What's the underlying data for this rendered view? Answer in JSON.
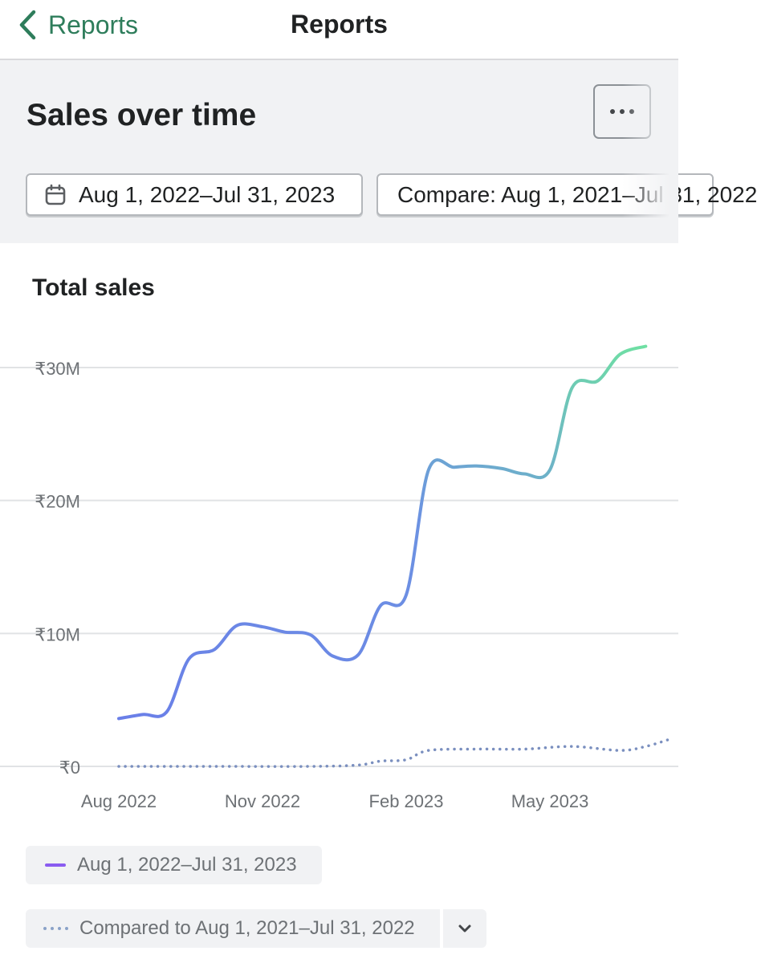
{
  "nav": {
    "back_label": "Reports",
    "title": "Reports",
    "back_icon": "chevron-left-icon"
  },
  "header": {
    "title": "Sales over time",
    "more_icon": "ellipsis-icon",
    "date_range": "Aug 1, 2022–Jul 31, 2023",
    "date_icon": "calendar-icon",
    "compare_range": "Compare: Aug 1, 2021–Jul 31, 2022"
  },
  "card": {
    "title": "Total sales"
  },
  "legend": {
    "primary": "Aug 1, 2022–Jul 31, 2023",
    "comparison": "Compared to Aug 1, 2021–Jul 31, 2022",
    "toggle_icon": "chevron-down-icon"
  },
  "colors": {
    "accent_green": "#2e7d5b",
    "line_start": "#6a7fe8",
    "line_end": "#6fe0a3",
    "comparison_line": "#7a8fbf",
    "legend_swatch": "#8a5cf0"
  },
  "chart_data": {
    "type": "line",
    "title": "Total sales",
    "x_ticks": [
      "Aug 2022",
      "Nov 2022",
      "Feb 2023",
      "May 2023"
    ],
    "y_ticks": [
      "₹0",
      "₹10M",
      "₹20M",
      "₹30M"
    ],
    "ylim": [
      0,
      30000000
    ],
    "grid": true,
    "legend_position": "bottom",
    "series": [
      {
        "name": "Aug 1, 2022–Jul 31, 2023",
        "style": "solid",
        "points": [
          {
            "x": "2022-08-01",
            "y": 3.6
          },
          {
            "x": "2022-08-16",
            "y": 3.9
          },
          {
            "x": "2022-09-01",
            "y": 4.1
          },
          {
            "x": "2022-09-15",
            "y": 8.1
          },
          {
            "x": "2022-10-01",
            "y": 8.8
          },
          {
            "x": "2022-10-15",
            "y": 10.6
          },
          {
            "x": "2022-11-01",
            "y": 10.5
          },
          {
            "x": "2022-11-15",
            "y": 10.1
          },
          {
            "x": "2022-12-01",
            "y": 9.9
          },
          {
            "x": "2022-12-15",
            "y": 8.3
          },
          {
            "x": "2023-01-01",
            "y": 8.4
          },
          {
            "x": "2023-01-15",
            "y": 12.1
          },
          {
            "x": "2023-02-01",
            "y": 12.9
          },
          {
            "x": "2023-02-15",
            "y": 22.3
          },
          {
            "x": "2023-03-01",
            "y": 22.5
          },
          {
            "x": "2023-03-15",
            "y": 22.6
          },
          {
            "x": "2023-04-01",
            "y": 22.4
          },
          {
            "x": "2023-04-15",
            "y": 22.0
          },
          {
            "x": "2023-05-01",
            "y": 22.3
          },
          {
            "x": "2023-05-15",
            "y": 28.5
          },
          {
            "x": "2023-06-01",
            "y": 29.0
          },
          {
            "x": "2023-06-15",
            "y": 31.0
          },
          {
            "x": "2023-07-01",
            "y": 31.6
          }
        ]
      },
      {
        "name": "Compared to Aug 1, 2021–Jul 31, 2022",
        "style": "dotted",
        "points": [
          {
            "x": "2022-08-01",
            "y": 0.0
          },
          {
            "x": "2022-10-01",
            "y": 0.0
          },
          {
            "x": "2022-12-01",
            "y": 0.0
          },
          {
            "x": "2023-01-01",
            "y": 0.1
          },
          {
            "x": "2023-01-15",
            "y": 0.4
          },
          {
            "x": "2023-02-01",
            "y": 0.5
          },
          {
            "x": "2023-02-15",
            "y": 1.2
          },
          {
            "x": "2023-03-15",
            "y": 1.3
          },
          {
            "x": "2023-04-15",
            "y": 1.3
          },
          {
            "x": "2023-05-15",
            "y": 1.5
          },
          {
            "x": "2023-06-15",
            "y": 1.2
          },
          {
            "x": "2023-07-01",
            "y": 1.5
          },
          {
            "x": "2023-07-15",
            "y": 2.0
          }
        ]
      }
    ],
    "y_unit_values": "millions of ₹"
  }
}
